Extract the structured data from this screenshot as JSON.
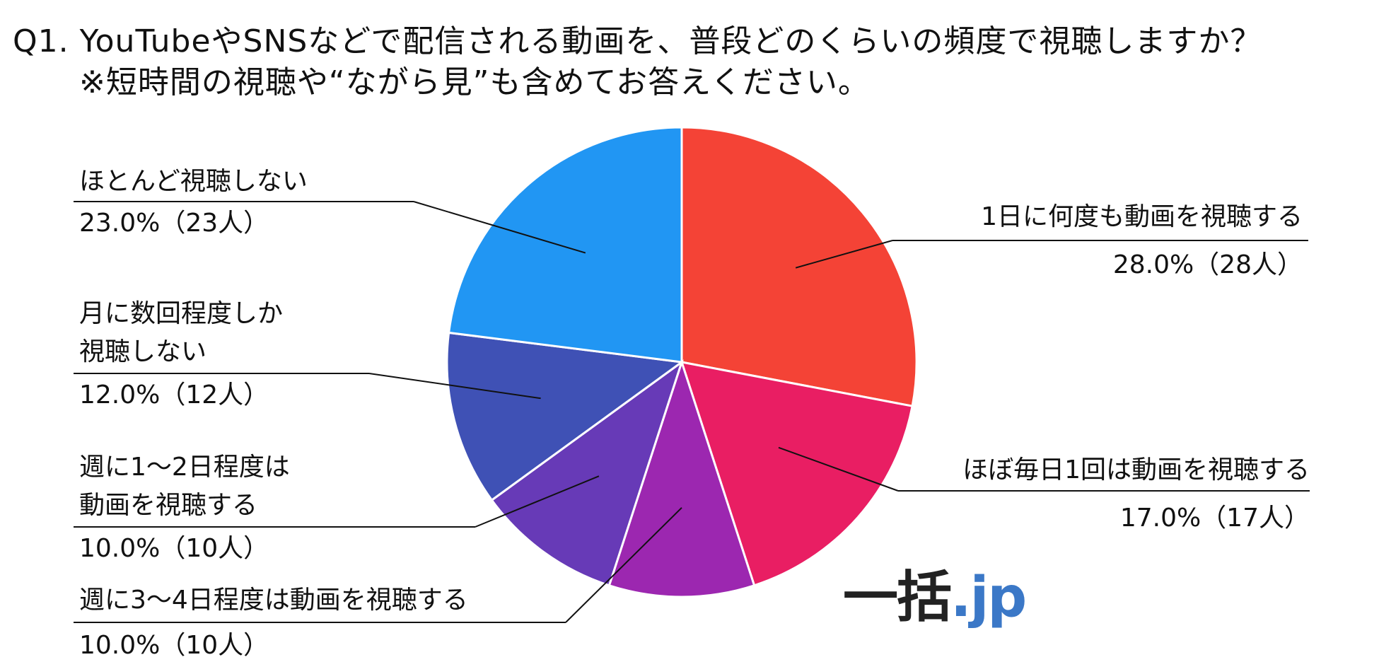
{
  "question": {
    "line1": "Q1. YouTubeやSNSなどで配信される動画を、普段どのくらいの頻度で視聴しますか？",
    "line2": "※短時間の視聴や“ながら見”も含めてお答えください。"
  },
  "logo": {
    "brand": "一括",
    "tld": ".jp"
  },
  "chart_data": {
    "type": "pie",
    "start_angle_deg": 0,
    "direction": "clockwise",
    "slices": [
      {
        "label": "1日に何度も動画を視聴する",
        "lines": [
          "1日に何度も動画を視聴する"
        ],
        "value": 28.0,
        "count_label": "28.0%（28人）",
        "color": "#F44336"
      },
      {
        "label": "ほぼ毎日1回は動画を視聴する",
        "lines": [
          "ほぼ毎日1回は動画を視聴する"
        ],
        "value": 17.0,
        "count_label": "17.0%（17人）",
        "color": "#E91E63"
      },
      {
        "label": "週に3〜4日程度は動画を視聴する",
        "lines": [
          "週に3〜4日程度は動画を視聴する"
        ],
        "value": 10.0,
        "count_label": "10.0%（10人）",
        "color": "#9C27B0"
      },
      {
        "label": "週に1〜2日程度は動画を視聴する",
        "lines": [
          "週に1〜2日程度は",
          "動画を視聴する"
        ],
        "value": 10.0,
        "count_label": "10.0%（10人）",
        "color": "#673AB7"
      },
      {
        "label": "月に数回程度しか視聴しない",
        "lines": [
          "月に数回程度しか",
          "視聴しない"
        ],
        "value": 12.0,
        "count_label": "12.0%（12人）",
        "color": "#3F51B5"
      },
      {
        "label": "ほとんど視聴しない",
        "lines": [
          "ほとんど視聴しない"
        ],
        "value": 23.0,
        "count_label": "23.0%（23人）",
        "color": "#2196F3"
      }
    ]
  }
}
